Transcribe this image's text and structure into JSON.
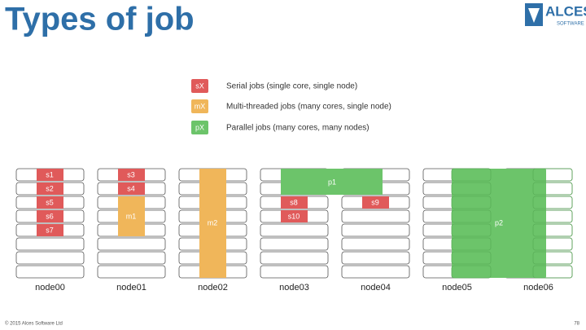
{
  "title": "Types of job",
  "logo": {
    "name": "ALCES",
    "sub": "SOFTWARE"
  },
  "legend": [
    {
      "key": "sX",
      "label": "Serial jobs (single core, single node)"
    },
    {
      "key": "mX",
      "label": "Multi-threaded jobs (many cores, single node)"
    },
    {
      "key": "pX",
      "label": "Parallel jobs (many cores, many nodes)"
    }
  ],
  "nodes": [
    "node00",
    "node01",
    "node02",
    "node03",
    "node04",
    "node05",
    "node06"
  ],
  "jobs": [
    "s1",
    "s2",
    "s5",
    "s6",
    "s7",
    "s3",
    "s4",
    "m1",
    "m2",
    "p1",
    "s8",
    "s10",
    "s9",
    "p2"
  ],
  "footer": "© 2015 Alces Software Ltd",
  "page": "78"
}
